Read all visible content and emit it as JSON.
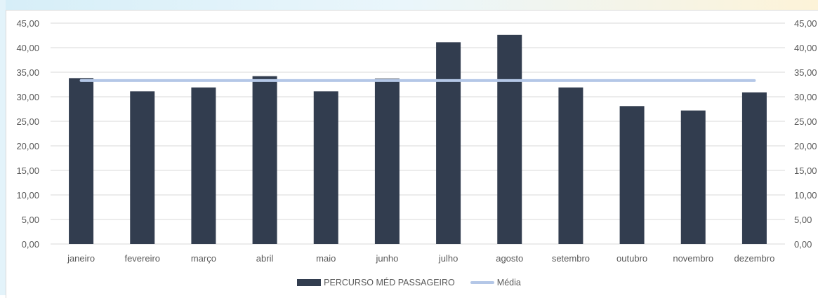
{
  "chart_data": {
    "type": "bar",
    "categories": [
      "janeiro",
      "fevereiro",
      "março",
      "abril",
      "maio",
      "junho",
      "julho",
      "agosto",
      "setembro",
      "outubro",
      "novembro",
      "dezembro"
    ],
    "series": [
      {
        "name": "PERCURSO MÉD PASSAGEIRO",
        "type": "bar",
        "color": "#323d4f",
        "values": [
          33.8,
          31.1,
          31.9,
          34.2,
          31.1,
          33.7,
          41.1,
          42.6,
          31.9,
          28.1,
          27.2,
          30.9
        ]
      },
      {
        "name": "Média",
        "type": "line",
        "color": "#b4c7e7",
        "values": [
          33.3,
          33.3,
          33.3,
          33.3,
          33.3,
          33.3,
          33.3,
          33.3,
          33.3,
          33.3,
          33.3,
          33.3
        ]
      }
    ],
    "ylim": [
      0,
      45
    ],
    "y_ticks": [
      "0,00",
      "5,00",
      "10,00",
      "15,00",
      "20,00",
      "25,00",
      "30,00",
      "35,00",
      "40,00",
      "45,00"
    ],
    "y2_ticks": [
      "0,00",
      "5,00",
      "10,00",
      "15,00",
      "20,00",
      "25,00",
      "30,00",
      "35,00",
      "40,00",
      "45,00"
    ],
    "grid": true,
    "legend_position": "bottom"
  },
  "legend": {
    "bar_label": "PERCURSO MÉD PASSAGEIRO",
    "line_label": "Média"
  },
  "colors": {
    "bar": "#323d4f",
    "line": "#b4c7e7",
    "grid": "#d9d9d9",
    "text": "#595959"
  }
}
